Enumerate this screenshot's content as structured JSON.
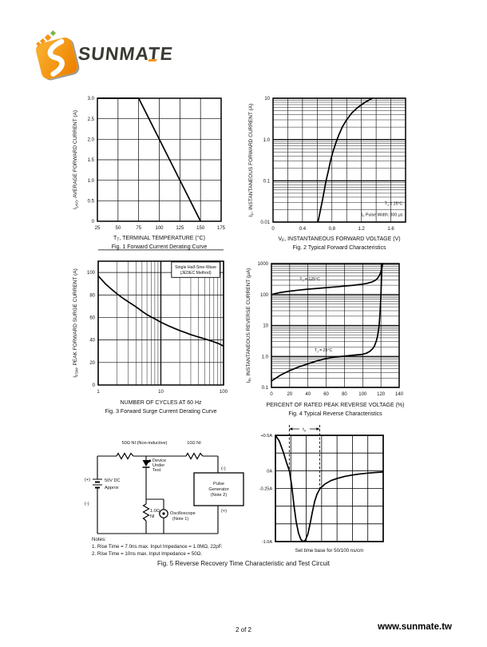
{
  "brand": {
    "name": "SUNMATE",
    "accent": "#F7941D",
    "green": "#7AB648",
    "dark": "#3A3A33"
  },
  "footer": {
    "page": "2 of 2",
    "site": "www.sunmate.tw"
  },
  "fig5_caption": "Fig. 5  Reverse Recovery Time Characteristic and Test Circuit",
  "notes": {
    "title": "Notes:",
    "line1": "1. Rise Time = 7.0ns max. Input Impedance = 1.0MΩ, 22pF.",
    "line2": "2. Rise Time = 10ns max. Input Impedance = 50Ω."
  },
  "circuit": {
    "r1_label": "50Ω NI (Non-inductive)",
    "r2_label": "10Ω NI",
    "dut_lines": [
      "Device",
      "Under",
      "Test"
    ],
    "source_plus": "(+)",
    "source_minus": "(-)",
    "source_lines": [
      "50V DC",
      "Approx"
    ],
    "shunt_lines": [
      "1.0Ω",
      "NI"
    ],
    "scope_lines": [
      "Oscilloscope",
      "(Note 1)"
    ],
    "generator_lines": [
      "Pulse",
      "Generator",
      "(Note 2)"
    ],
    "generator_minus": "(-)",
    "generator_plus": "(+)"
  },
  "chart_data": [
    {
      "id": "fig1",
      "type": "line",
      "title": "Fig. 1  Forward Current Derating Curve",
      "caption": "Fig. 1  Forward Current Derating Curve",
      "xlabel_parts": [
        {
          "t": "T"
        },
        {
          "t": "T",
          "sub": true
        },
        {
          "t": ", TERMINAL TEMPERATURE (°C)"
        }
      ],
      "ylabel_parts": [
        {
          "t": "I"
        },
        {
          "t": "(AV)",
          "sub": true
        },
        {
          "t": ", AVERAGE FORWARD CURRENT (A)"
        }
      ],
      "x": {
        "scale": "linear",
        "min": 25,
        "max": 175,
        "grid_step": 25,
        "ticks": [
          25,
          50,
          75,
          100,
          125,
          150,
          175
        ],
        "tick_labels": [
          "25",
          "50",
          "75",
          "100",
          "125",
          "150",
          "175"
        ]
      },
      "y": {
        "scale": "linear",
        "min": 0,
        "max": 3,
        "grid_step": 0.5,
        "ticks": [
          0,
          0.5,
          1,
          1.5,
          2,
          2.5,
          3
        ],
        "tick_labels": [
          "0",
          "0.5",
          "1.0",
          "1.5",
          "2.0",
          "2.5",
          "3.0"
        ]
      },
      "series": [
        {
          "name": "derating",
          "points": [
            [
              25,
              3
            ],
            [
              75,
              3
            ],
            [
              150,
              0
            ]
          ]
        }
      ]
    },
    {
      "id": "fig2",
      "type": "line",
      "title": "Fig. 2  Typical Forward Characteristics",
      "caption": "Fig. 2  Typical Forward Characteristics",
      "xlabel_parts": [
        {
          "t": "V"
        },
        {
          "t": "F",
          "sub": true
        },
        {
          "t": ", INSTANTANEOUS FORWARD VOLTAGE (V)"
        }
      ],
      "ylabel_parts": [
        {
          "t": "I"
        },
        {
          "t": "F",
          "sub": true
        },
        {
          "t": ", INSTANTANEOUS FORWARD CURRENT (A)"
        }
      ],
      "x": {
        "scale": "linear",
        "min": 0,
        "max": 1.8,
        "grid_step": 0.2,
        "ticks": [
          0,
          0.4,
          0.8,
          1.2,
          1.6
        ],
        "tick_labels": [
          "0",
          "0.4",
          "0.8",
          "1.2",
          "1.6"
        ]
      },
      "y": {
        "scale": "log",
        "min": 0.01,
        "max": 10,
        "ticks": [
          0.01,
          0.1,
          1,
          10
        ],
        "tick_labels": [
          "0.01",
          "0.1",
          "1.0",
          "10"
        ]
      },
      "series": [
        {
          "name": "vf-if",
          "points": [
            [
              0.61,
              0.01
            ],
            [
              0.64,
              0.018
            ],
            [
              0.67,
              0.033
            ],
            [
              0.7,
              0.065
            ],
            [
              0.72,
              0.1
            ],
            [
              0.75,
              0.17
            ],
            [
              0.78,
              0.3
            ],
            [
              0.81,
              0.48
            ],
            [
              0.85,
              0.8
            ],
            [
              0.89,
              1.25
            ],
            [
              0.94,
              2.0
            ],
            [
              1.0,
              3.0
            ],
            [
              1.07,
              4.4
            ],
            [
              1.15,
              6.0
            ],
            [
              1.25,
              8.0
            ],
            [
              1.35,
              10
            ]
          ]
        }
      ],
      "annotations": [
        {
          "x": 1.76,
          "y": 0.028,
          "anchor": "end",
          "parts": [
            {
              "t": "T"
            },
            {
              "t": "J",
              "sub": true
            },
            {
              "t": " = 25°C"
            }
          ]
        },
        {
          "x": 1.76,
          "y": 0.0152,
          "anchor": "end",
          "parts": [
            {
              "t": "I"
            },
            {
              "t": "F",
              "sub": true
            },
            {
              "t": " Pulse Width: 300 μs"
            }
          ]
        }
      ]
    },
    {
      "id": "fig3",
      "type": "line",
      "title": "Fig. 3  Forward Surge Current Derating Curve",
      "caption": "Fig. 3  Forward Surge Current Derating Curve",
      "xlabel_parts": [
        {
          "t": "NUMBER OF CYCLES AT 60 Hz"
        }
      ],
      "ylabel_parts": [
        {
          "t": "I"
        },
        {
          "t": "FSM",
          "sub": true
        },
        {
          "t": ", PEAK FORWARD SURGE CURRENT (A)"
        }
      ],
      "x": {
        "scale": "log",
        "min": 1,
        "max": 100,
        "ticks": [
          1,
          10,
          100
        ],
        "tick_labels": [
          "1",
          "10",
          "100"
        ]
      },
      "y": {
        "scale": "linear",
        "min": 0,
        "max": 110,
        "grid_step": 20,
        "ticks": [
          0,
          20,
          40,
          60,
          80,
          100
        ],
        "tick_labels": [
          "0",
          "20",
          "40",
          "60",
          "80",
          "100"
        ]
      },
      "series": [
        {
          "name": "surge",
          "points": [
            [
              1,
              97
            ],
            [
              1.3,
              90
            ],
            [
              1.6,
              85.5
            ],
            [
              2,
              81
            ],
            [
              2.5,
              77
            ],
            [
              3,
              74
            ],
            [
              4,
              69.5
            ],
            [
              5,
              65.5
            ],
            [
              6,
              62.5
            ],
            [
              7,
              60.5
            ],
            [
              8,
              58.8
            ],
            [
              9,
              57.2
            ],
            [
              10,
              55.8
            ],
            [
              13,
              52.8
            ],
            [
              16,
              50.6
            ],
            [
              20,
              48.4
            ],
            [
              25,
              46.4
            ],
            [
              30,
              44.8
            ],
            [
              40,
              42.6
            ],
            [
              50,
              41
            ],
            [
              60,
              39.6
            ],
            [
              70,
              38.4
            ],
            [
              85,
              36.6
            ],
            [
              100,
              34.5
            ]
          ]
        }
      ],
      "legend": {
        "fx": 0.585,
        "fy": 0.006,
        "fw": 0.385,
        "fh": 0.125,
        "lines": [
          "Single Half-Sine-Wave",
          "(JEDEC Method)"
        ]
      }
    },
    {
      "id": "fig4",
      "type": "line",
      "title": "Fig. 4  Typical Reverse Characteristics",
      "caption": "Fig. 4  Typical Reverse Characteristics",
      "xlabel_parts": [
        {
          "t": "PERCENT OF RATED PEAK REVERSE VOLTAGE (%)"
        }
      ],
      "ylabel_parts": [
        {
          "t": "I"
        },
        {
          "t": "R",
          "sub": true
        },
        {
          "t": ", INSTANTANEOUS REVERSE CURRENT (μA)"
        }
      ],
      "x": {
        "scale": "linear",
        "min": 0,
        "max": 140,
        "grid_step": 20,
        "ticks": [
          0,
          20,
          40,
          60,
          80,
          100,
          120,
          140
        ],
        "tick_labels": [
          "0",
          "20",
          "40",
          "60",
          "80",
          "100",
          "120",
          "140"
        ]
      },
      "y": {
        "scale": "log",
        "min": 0.1,
        "max": 1000,
        "ticks": [
          0.1,
          1,
          10,
          100,
          1000
        ],
        "tick_labels": [
          "0.1",
          "1.0",
          "10",
          "100",
          "1000"
        ]
      },
      "series": [
        {
          "name": "tj-125",
          "points": [
            [
              0,
              100
            ],
            [
              5,
              109
            ],
            [
              10,
              117
            ],
            [
              20,
              129
            ],
            [
              30,
              139
            ],
            [
              40,
              149
            ],
            [
              50,
              158
            ],
            [
              60,
              167
            ],
            [
              70,
              176
            ],
            [
              80,
              187
            ],
            [
              90,
              200
            ],
            [
              100,
              217
            ],
            [
              105,
              231
            ],
            [
              110,
              254
            ],
            [
              113,
              278
            ],
            [
              115,
              305
            ],
            [
              117,
              355
            ],
            [
              119,
              460
            ],
            [
              120,
              560
            ],
            [
              121,
              730
            ],
            [
              122,
              1000
            ]
          ]
        },
        {
          "name": "tj-25",
          "points": [
            [
              0,
              0.16
            ],
            [
              5,
              0.2
            ],
            [
              10,
              0.25
            ],
            [
              20,
              0.35
            ],
            [
              30,
              0.46
            ],
            [
              40,
              0.58
            ],
            [
              50,
              0.72
            ],
            [
              60,
              0.86
            ],
            [
              70,
              0.96
            ],
            [
              80,
              1.03
            ],
            [
              90,
              1.1
            ],
            [
              100,
              1.17
            ],
            [
              104,
              1.27
            ],
            [
              108,
              1.48
            ],
            [
              111,
              1.8
            ],
            [
              113,
              2.2
            ],
            [
              115,
              3.2
            ],
            [
              116,
              4.2
            ],
            [
              117,
              6
            ],
            [
              118,
              10
            ],
            [
              119,
              25
            ],
            [
              120,
              90
            ],
            [
              120.6,
              300
            ],
            [
              121.2,
              1000
            ]
          ]
        }
      ],
      "annotations": [
        {
          "x": 31,
          "y": 320,
          "anchor": "start",
          "parts": [
            {
              "t": "T"
            },
            {
              "t": "J",
              "sub": true
            },
            {
              "t": " = 125°C"
            }
          ]
        },
        {
          "x": 47,
          "y": 1.6,
          "anchor": "start",
          "parts": [
            {
              "t": "T"
            },
            {
              "t": "J",
              "sub": true
            },
            {
              "t": " = 25°C"
            }
          ]
        }
      ]
    },
    {
      "id": "wave",
      "type": "line",
      "title": "Reverse recovery current waveform",
      "xlabel_parts": [
        {
          "t": "Set time base for 50/100 ns/cm"
        }
      ],
      "x": {
        "scale": "linear",
        "min": 0,
        "max": 7,
        "grid_step": 1,
        "ticks": [],
        "tick_labels": []
      },
      "y": {
        "scale": "linear",
        "min": -1,
        "max": 0.5,
        "grid_step": 0.25,
        "ticks": [
          0.5,
          0,
          -0.25,
          -1
        ],
        "tick_labels": [
          "+0.5A",
          "0A",
          "-0.25A",
          "-1.0A"
        ]
      },
      "series": [
        {
          "name": "irr",
          "points": [
            [
              0,
              0.5
            ],
            [
              0.25,
              0.42
            ],
            [
              0.5,
              0.27
            ],
            [
              0.7,
              0.13
            ],
            [
              0.9,
              0
            ],
            [
              1.05,
              -0.2
            ],
            [
              1.2,
              -0.48
            ],
            [
              1.35,
              -0.72
            ],
            [
              1.5,
              -0.88
            ],
            [
              1.65,
              -0.97
            ],
            [
              1.8,
              -1.0
            ],
            [
              1.95,
              -0.98
            ],
            [
              2.1,
              -0.9
            ],
            [
              2.25,
              -0.75
            ],
            [
              2.4,
              -0.58
            ],
            [
              2.55,
              -0.43
            ],
            [
              2.7,
              -0.33
            ],
            [
              2.9,
              -0.25
            ],
            [
              3.2,
              -0.19
            ],
            [
              3.6,
              -0.14
            ],
            [
              4.0,
              -0.11
            ],
            [
              4.5,
              -0.08
            ],
            [
              5.0,
              -0.06
            ],
            [
              5.5,
              -0.045
            ],
            [
              6.0,
              -0.033
            ],
            [
              6.5,
              -0.024
            ],
            [
              7.0,
              -0.018
            ]
          ]
        }
      ],
      "trr": {
        "x1": 0.9,
        "x2": 2.87,
        "y1_end": 0,
        "y2_end": -0.25,
        "label": [
          {
            "t": "t"
          },
          {
            "t": "rr",
            "sub": true
          }
        ]
      }
    }
  ]
}
